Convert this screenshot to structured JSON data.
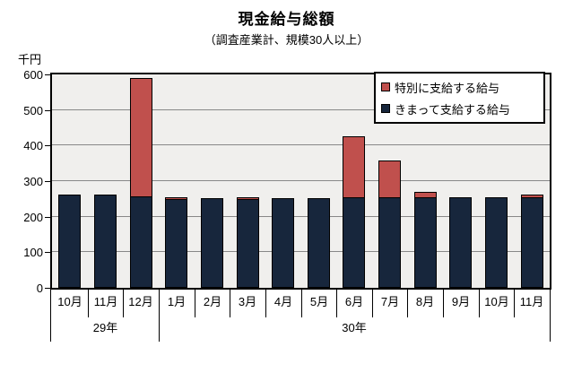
{
  "title": "現金給与総額",
  "subtitle": "（調査産業計、規模30人以上）",
  "y_unit_label": "千円",
  "legend": {
    "items": [
      {
        "label": "特別に支給する給与",
        "color": "#c0504d"
      },
      {
        "label": "きまって支給する給与",
        "color": "#17263c"
      }
    ]
  },
  "chart_data": {
    "type": "bar",
    "stacked": true,
    "title": "現金給与総額",
    "subtitle": "（調査産業計、規模30人以上）",
    "ylabel": "千円",
    "ylim": [
      0,
      600
    ],
    "yticks": [
      0,
      100,
      200,
      300,
      400,
      500,
      600
    ],
    "grid": "horizontal",
    "legend_position": "top-right-inside",
    "categories": [
      "10月",
      "11月",
      "12月",
      "1月",
      "2月",
      "3月",
      "4月",
      "5月",
      "6月",
      "7月",
      "8月",
      "9月",
      "10月",
      "11月"
    ],
    "year_groups": [
      {
        "label": "29年",
        "months": 3
      },
      {
        "label": "30年",
        "months": 11
      }
    ],
    "series": [
      {
        "name": "きまって支給する給与",
        "color": "#17263c",
        "values": [
          263,
          263,
          258,
          250,
          251,
          250,
          253,
          253,
          254,
          254,
          255,
          254,
          254,
          255
        ]
      },
      {
        "name": "特別に支給する給与",
        "color": "#c0504d",
        "values": [
          0,
          0,
          332,
          5,
          0,
          5,
          0,
          0,
          172,
          104,
          14,
          0,
          0,
          7
        ]
      }
    ],
    "totals": [
      263,
      263,
      590,
      255,
      251,
      255,
      253,
      253,
      426,
      358,
      269,
      254,
      254,
      262
    ],
    "colors": {
      "plot_background": "#f0efed",
      "gridline": "#888888",
      "axis": "#000000",
      "regular_pay": "#17263c",
      "special_pay": "#c0504d"
    }
  }
}
